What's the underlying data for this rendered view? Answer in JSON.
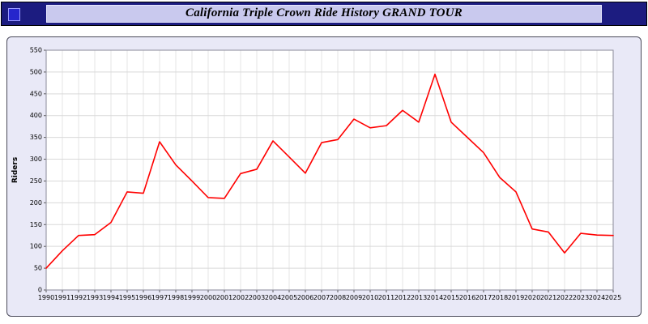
{
  "header": {
    "title": "California Triple Crown Ride History GRAND TOUR",
    "nav_square_color": "#2626cc",
    "bar_color": "#1c1c80",
    "title_box_color": "#c9c9ee"
  },
  "chart_data": {
    "type": "line",
    "title": "California Triple Crown Ride History GRAND TOUR",
    "xlabel": "",
    "ylabel": "Riders",
    "ylim": [
      0,
      550
    ],
    "ytick_step": 50,
    "grid": true,
    "legend": "none",
    "plot_bg": "#ffffff",
    "panel_bg": "#e9e9f7",
    "grid_color": "#d9d9d9",
    "x": [
      1990,
      1991,
      1992,
      1993,
      1994,
      1995,
      1996,
      1997,
      1998,
      1999,
      2000,
      2001,
      2002,
      2003,
      2004,
      2005,
      2006,
      2007,
      2008,
      2009,
      2010,
      2011,
      2012,
      2013,
      2014,
      2015,
      2016,
      2017,
      2018,
      2019,
      2020,
      2021,
      2022,
      2023,
      2024,
      2025
    ],
    "series": [
      {
        "name": "Riders",
        "color": "#ff0000",
        "values": [
          50,
          90,
          125,
          127,
          155,
          225,
          222,
          340,
          287,
          250,
          212,
          210,
          267,
          277,
          342,
          305,
          268,
          338,
          345,
          392,
          372,
          377,
          412,
          385,
          495,
          385,
          350,
          315,
          258,
          225,
          140,
          133,
          85,
          130,
          126,
          125
        ]
      }
    ]
  }
}
